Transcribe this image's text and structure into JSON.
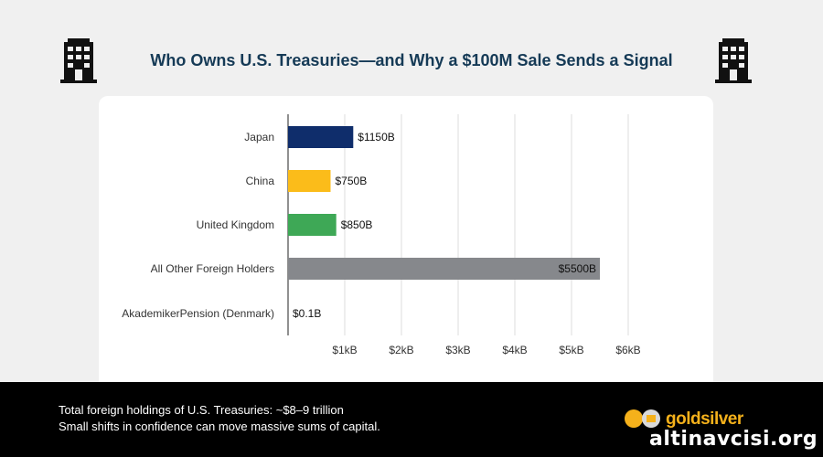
{
  "header": {
    "title": "Who Owns U.S. Treasuries—and Why a $100M Sale Sends a Signal"
  },
  "icons": {
    "left": "office-building-icon",
    "right": "office-building-icon"
  },
  "chart_data": {
    "type": "bar",
    "orientation": "horizontal",
    "title": "Who Owns U.S. Treasuries—and Why a $100M Sale Sends a Signal",
    "categories": [
      "Japan",
      "China",
      "United Kingdom",
      "All Other Foreign Holders",
      "AkademikerPension (Denmark)"
    ],
    "values": [
      1150,
      750,
      850,
      5500,
      0.1
    ],
    "value_labels": [
      "$1150B",
      "$750B",
      "$850B",
      "$5500B",
      "$0.1B"
    ],
    "unit": "billion USD",
    "colors": [
      "#0f2d6b",
      "#fbbc1a",
      "#3ea856",
      "#86888c",
      "#86888c"
    ],
    "xlim": [
      0,
      6000
    ],
    "x_ticks": [
      1000,
      2000,
      3000,
      4000,
      5000,
      6000
    ],
    "x_tick_labels": [
      "$1kB",
      "$2kB",
      "$3kB",
      "$4kB",
      "$5kB",
      "$6kB"
    ],
    "xlabel": "",
    "ylabel": "",
    "grid": true,
    "legend": "none"
  },
  "footer": {
    "line1": "Total foreign holdings of U.S. Treasuries: ~$8–9 trillion",
    "line2": "Small shifts in confidence can move massive sums of capital.",
    "brand": "goldsilver",
    "watermark": "altinavcisi.org"
  }
}
